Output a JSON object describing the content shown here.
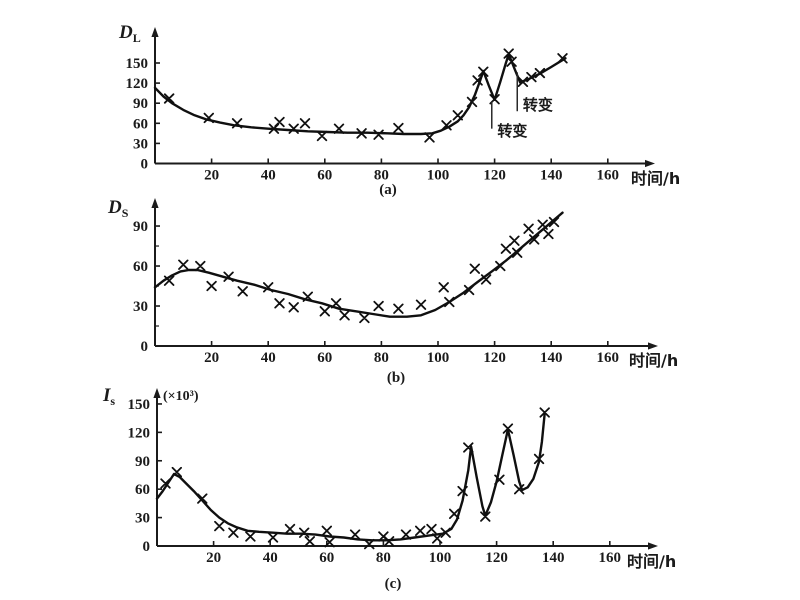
{
  "figure": {
    "background": "#ffffff",
    "ink": "#1b1b1b",
    "description_labels": {
      "x_axis_label": "时间/h",
      "transformation_label": "转变"
    }
  },
  "chart_data": [
    {
      "id": "a",
      "type": "scatter",
      "title": "(a)",
      "xlabel": "时间/h",
      "ylabel": "D_L",
      "ylabel_main": "D",
      "ylabel_sub": "L",
      "ylabel_unit": "",
      "marker": "x",
      "xlim": [
        0,
        176
      ],
      "ylim": [
        0,
        204
      ],
      "x_ticks": [
        20,
        40,
        60,
        80,
        100,
        120,
        140,
        160
      ],
      "y_ticks": [
        0,
        30,
        60,
        90,
        120,
        150
      ],
      "y_minor_ticks": [],
      "grid": "off",
      "points": [
        [
          5,
          97
        ],
        [
          19,
          68
        ],
        [
          29,
          60
        ],
        [
          42,
          52
        ],
        [
          44,
          62
        ],
        [
          49,
          52
        ],
        [
          53,
          60
        ],
        [
          59,
          41
        ],
        [
          65,
          52
        ],
        [
          73,
          45
        ],
        [
          79,
          43
        ],
        [
          86,
          53
        ],
        [
          97,
          39
        ],
        [
          103,
          57
        ],
        [
          107,
          72
        ],
        [
          112,
          92
        ],
        [
          114,
          124
        ],
        [
          116,
          137
        ],
        [
          120,
          96
        ],
        [
          125,
          164
        ],
        [
          126,
          152
        ],
        [
          130,
          122
        ],
        [
          133,
          129
        ],
        [
          136,
          135
        ],
        [
          144,
          157
        ]
      ],
      "fit_curve": [
        [
          0,
          113
        ],
        [
          3,
          100
        ],
        [
          6,
          90
        ],
        [
          10,
          80
        ],
        [
          14,
          72
        ],
        [
          18,
          66
        ],
        [
          23,
          61
        ],
        [
          28,
          57
        ],
        [
          34,
          54
        ],
        [
          40,
          52
        ],
        [
          47,
          50
        ],
        [
          54,
          48
        ],
        [
          61,
          47
        ],
        [
          68,
          46
        ],
        [
          75,
          46
        ],
        [
          82,
          45
        ],
        [
          88,
          44
        ],
        [
          94,
          44
        ],
        [
          98,
          45
        ],
        [
          101,
          49
        ],
        [
          104,
          55
        ],
        [
          107,
          63
        ],
        [
          109,
          72
        ],
        [
          111,
          84
        ],
        [
          113,
          102
        ],
        [
          115,
          125
        ],
        [
          116,
          138
        ],
        [
          118,
          116
        ],
        [
          120,
          95
        ],
        [
          122,
          122
        ],
        [
          124,
          150
        ],
        [
          125,
          163
        ],
        [
          127,
          142
        ],
        [
          129,
          121
        ],
        [
          132,
          126
        ],
        [
          136,
          134
        ],
        [
          140,
          144
        ],
        [
          145,
          157
        ]
      ],
      "annotations": [
        {
          "text": "转变",
          "x": 119,
          "y_from": 93,
          "y_to": 52,
          "label_x": 121,
          "label_y": 41
        },
        {
          "text": "转变",
          "x": 128,
          "y_from": 136,
          "y_to": 78,
          "label_x": 130,
          "label_y": 80
        }
      ]
    },
    {
      "id": "b",
      "type": "scatter",
      "title": "(b)",
      "xlabel": "时间/h",
      "ylabel": "D_S",
      "ylabel_main": "D",
      "ylabel_sub": "S",
      "ylabel_unit": "",
      "marker": "x",
      "xlim": [
        0,
        176
      ],
      "ylim": [
        0,
        111
      ],
      "x_ticks": [
        20,
        40,
        60,
        80,
        100,
        120,
        140,
        160
      ],
      "y_ticks": [
        0,
        30,
        60,
        90
      ],
      "y_minor_ticks": [
        15,
        45,
        75
      ],
      "grid": "off",
      "points": [
        [
          5,
          49
        ],
        [
          10,
          61
        ],
        [
          16,
          60
        ],
        [
          20,
          45
        ],
        [
          26,
          52
        ],
        [
          31,
          41
        ],
        [
          40,
          44
        ],
        [
          44,
          32
        ],
        [
          49,
          29
        ],
        [
          54,
          37
        ],
        [
          60,
          26
        ],
        [
          64,
          32
        ],
        [
          67,
          23
        ],
        [
          74,
          21
        ],
        [
          79,
          30
        ],
        [
          86,
          28
        ],
        [
          94,
          31
        ],
        [
          102,
          44
        ],
        [
          104,
          33
        ],
        [
          111,
          42
        ],
        [
          113,
          58
        ],
        [
          117,
          50
        ],
        [
          122,
          60
        ],
        [
          124,
          73
        ],
        [
          127,
          79
        ],
        [
          128,
          70
        ],
        [
          132,
          88
        ],
        [
          134,
          80
        ],
        [
          137,
          91
        ],
        [
          139,
          84
        ],
        [
          141,
          93
        ]
      ],
      "fit_curve": [
        [
          0,
          44
        ],
        [
          3,
          49
        ],
        [
          6,
          53
        ],
        [
          9,
          56
        ],
        [
          12,
          57
        ],
        [
          15,
          57
        ],
        [
          19,
          55
        ],
        [
          24,
          52
        ],
        [
          29,
          49
        ],
        [
          35,
          46
        ],
        [
          41,
          42
        ],
        [
          47,
          39
        ],
        [
          53,
          35
        ],
        [
          59,
          32
        ],
        [
          65,
          28
        ],
        [
          71,
          26
        ],
        [
          77,
          24
        ],
        [
          83,
          22
        ],
        [
          89,
          22
        ],
        [
          94,
          23
        ],
        [
          99,
          27
        ],
        [
          104,
          33
        ],
        [
          109,
          40
        ],
        [
          114,
          48
        ],
        [
          119,
          56
        ],
        [
          124,
          64
        ],
        [
          129,
          73
        ],
        [
          134,
          82
        ],
        [
          139,
          91
        ],
        [
          144,
          100
        ]
      ],
      "annotations": []
    },
    {
      "id": "c",
      "type": "scatter",
      "title": "(c)",
      "xlabel": "时间/h",
      "ylabel": "I_s",
      "ylabel_main": "I",
      "ylabel_sub": "s",
      "ylabel_unit": "(×10³)",
      "marker": "x",
      "xlim": [
        0,
        176
      ],
      "ylim": [
        0,
        167
      ],
      "x_ticks": [
        20,
        40,
        60,
        80,
        100,
        120,
        140,
        160
      ],
      "y_ticks": [
        0,
        30,
        60,
        90,
        120,
        150
      ],
      "y_minor_ticks": [],
      "grid": "off",
      "points": [
        [
          3,
          66
        ],
        [
          7,
          78
        ],
        [
          16,
          50
        ],
        [
          22,
          21
        ],
        [
          27,
          14
        ],
        [
          33,
          10
        ],
        [
          41,
          9
        ],
        [
          47,
          18
        ],
        [
          52,
          14
        ],
        [
          54,
          5
        ],
        [
          60,
          16
        ],
        [
          61,
          4
        ],
        [
          70,
          12
        ],
        [
          75,
          2
        ],
        [
          80,
          10
        ],
        [
          82,
          5
        ],
        [
          88,
          12
        ],
        [
          93,
          16
        ],
        [
          97,
          18
        ],
        [
          99,
          8
        ],
        [
          102,
          14
        ],
        [
          105,
          34
        ],
        [
          108,
          58
        ],
        [
          110,
          104
        ],
        [
          116,
          31
        ],
        [
          121,
          70
        ],
        [
          124,
          124
        ],
        [
          128,
          60
        ],
        [
          135,
          92
        ],
        [
          137,
          141
        ]
      ],
      "fit_curve": [
        [
          0,
          50
        ],
        [
          2,
          58
        ],
        [
          4,
          67
        ],
        [
          6,
          76
        ],
        [
          8,
          73
        ],
        [
          10,
          67
        ],
        [
          13,
          58
        ],
        [
          16,
          48
        ],
        [
          19,
          38
        ],
        [
          22,
          30
        ],
        [
          25,
          24
        ],
        [
          28,
          20
        ],
        [
          32,
          16
        ],
        [
          36,
          15
        ],
        [
          41,
          14
        ],
        [
          46,
          13
        ],
        [
          51,
          13
        ],
        [
          56,
          12
        ],
        [
          61,
          10
        ],
        [
          66,
          9
        ],
        [
          71,
          7
        ],
        [
          76,
          6
        ],
        [
          81,
          6
        ],
        [
          86,
          7
        ],
        [
          91,
          9
        ],
        [
          96,
          11
        ],
        [
          101,
          13
        ],
        [
          104,
          18
        ],
        [
          106,
          28
        ],
        [
          108,
          48
        ],
        [
          110,
          80
        ],
        [
          111,
          105
        ],
        [
          113,
          72
        ],
        [
          115,
          42
        ],
        [
          116,
          32
        ],
        [
          118,
          46
        ],
        [
          120,
          68
        ],
        [
          122,
          96
        ],
        [
          124,
          123
        ],
        [
          126,
          96
        ],
        [
          128,
          68
        ],
        [
          129,
          59
        ],
        [
          131,
          62
        ],
        [
          133,
          71
        ],
        [
          135,
          89
        ],
        [
          136,
          110
        ],
        [
          137,
          140
        ]
      ],
      "annotations": []
    }
  ]
}
